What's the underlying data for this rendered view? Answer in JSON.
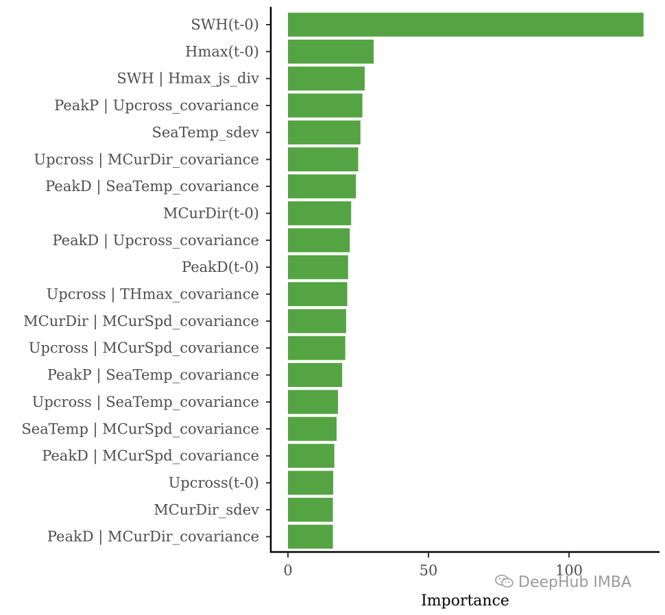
{
  "chart_data": {
    "type": "bar",
    "orientation": "horizontal",
    "categories": [
      "SWH(t-0)",
      "Hmax(t-0)",
      "SWH | Hmax_js_div",
      "PeakP | Upcross_covariance",
      "SeaTemp_sdev",
      "Upcross | MCurDir_covariance",
      "PeakD | SeaTemp_covariance",
      "MCurDir(t-0)",
      "PeakD | Upcross_covariance",
      "PeakD(t-0)",
      "Upcross | THmax_covariance",
      "MCurDir | MCurSpd_covariance",
      "Upcross | MCurSpd_covariance",
      "PeakP | SeaTemp_covariance",
      "Upcross | SeaTemp_covariance",
      "SeaTemp | MCurSpd_covariance",
      "PeakD | MCurSpd_covariance",
      "Upcross(t-0)",
      "MCurDir_sdev",
      "PeakD | MCurDir_covariance"
    ],
    "values": [
      126.5,
      30.5,
      27.3,
      26.5,
      25.8,
      25.0,
      24.2,
      22.5,
      22.0,
      21.4,
      21.1,
      20.7,
      20.4,
      19.3,
      17.8,
      17.3,
      16.5,
      16.1,
      16.0,
      16.0
    ],
    "xlabel": "Importance",
    "ylabel": "",
    "xlim": [
      -6,
      133
    ],
    "xticks": [
      0,
      50,
      100
    ],
    "bar_color": "#55a443",
    "grid": false
  },
  "watermark": {
    "text": "DeepHub IMBA",
    "icon": "wechat-icon",
    "color": "#9a9a9a"
  }
}
